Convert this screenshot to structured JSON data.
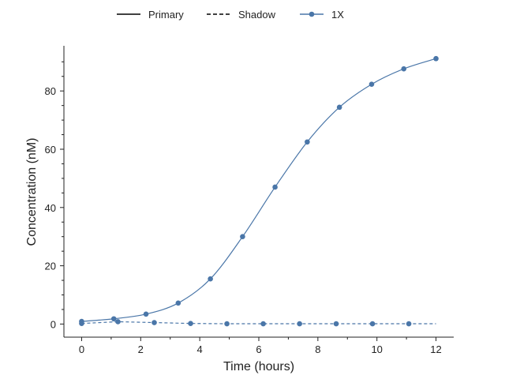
{
  "chart_data": {
    "type": "line",
    "title": "",
    "xlabel": "Time (hours)",
    "ylabel": "Concentration (nM)",
    "xlim": [
      -0.6,
      12.6
    ],
    "ylim": [
      -4.5,
      95.5
    ],
    "xticks": [
      0,
      2,
      4,
      6,
      8,
      10,
      12
    ],
    "yticks": [
      0,
      20,
      40,
      60,
      80
    ],
    "xtick_labels": [
      "0",
      "2",
      "4",
      "6",
      "8",
      "10",
      "12"
    ],
    "ytick_labels": [
      "0",
      "20",
      "40",
      "60",
      "80"
    ],
    "grid": false,
    "legend": {
      "placement": "top-center",
      "entries": [
        {
          "label": "Primary",
          "style": "solid",
          "color": "#000000",
          "marker": false
        },
        {
          "label": "Shadow",
          "style": "dashed",
          "color": "#000000",
          "marker": false
        },
        {
          "label": "1X",
          "style": "solid",
          "color": "#4a76a8",
          "marker": true
        }
      ]
    },
    "series": [
      {
        "name": "1X",
        "role": "Primary",
        "style": "solid",
        "color": "#4a76a8",
        "x": [
          0,
          1.09,
          2.18,
          3.27,
          4.36,
          5.45,
          6.55,
          7.64,
          8.73,
          9.82,
          10.91,
          12
        ],
        "y": [
          0.9,
          1.8,
          3.4,
          7.2,
          15.5,
          30.0,
          47.0,
          62.5,
          74.4,
          82.3,
          87.6,
          91.1
        ]
      },
      {
        "name": "1X",
        "role": "Shadow",
        "style": "dashed",
        "color": "#4a76a8",
        "x": [
          0,
          1.23,
          2.46,
          3.69,
          4.92,
          6.15,
          7.38,
          8.62,
          9.85,
          11.08
        ],
        "y": [
          0.2,
          0.8,
          0.5,
          0.2,
          0.1,
          0.1,
          0.1,
          0.1,
          0.1,
          0.1
        ]
      }
    ]
  }
}
